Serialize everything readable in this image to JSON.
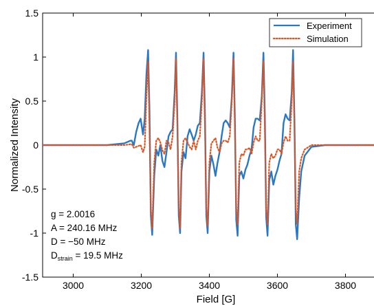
{
  "chart_data": {
    "type": "line",
    "title": "",
    "xlabel": "Field [G]",
    "ylabel": "Normalized Intensity",
    "xlim": [
      2910,
      3900
    ],
    "ylim": [
      -1.5,
      1.5
    ],
    "x_ticks": [
      3000,
      3200,
      3400,
      3600,
      3800
    ],
    "x_tick_labels": [
      "3000",
      "3200",
      "3400",
      "3600",
      "3800"
    ],
    "y_ticks": [
      -1.5,
      -1,
      -0.5,
      0,
      0.5,
      1,
      1.5
    ],
    "y_tick_labels": [
      "-1.5",
      "-1",
      "-0.5",
      "0",
      "0.5",
      "1",
      "1.5"
    ],
    "grid": false,
    "legend_position": "top-right",
    "series": [
      {
        "name": "Experiment",
        "color": "#2a78c2",
        "style": "solid",
        "x": [
          2910,
          3000,
          3100,
          3150,
          3168,
          3172,
          3178,
          3185,
          3192,
          3198,
          3205,
          3210,
          3215,
          3220,
          3224,
          3228,
          3232,
          3238,
          3244,
          3250,
          3256,
          3262,
          3268,
          3274,
          3280,
          3286,
          3292,
          3298,
          3302,
          3306,
          3310,
          3314,
          3318,
          3324,
          3330,
          3336,
          3342,
          3348,
          3354,
          3360,
          3366,
          3372,
          3378,
          3383,
          3387,
          3391,
          3395,
          3400,
          3406,
          3412,
          3418,
          3424,
          3430,
          3436,
          3442,
          3448,
          3454,
          3460,
          3466,
          3471,
          3475,
          3479,
          3483,
          3488,
          3494,
          3500,
          3506,
          3512,
          3518,
          3524,
          3530,
          3536,
          3542,
          3548,
          3554,
          3559,
          3563,
          3567,
          3571,
          3576,
          3582,
          3588,
          3594,
          3600,
          3606,
          3612,
          3618,
          3624,
          3630,
          3636,
          3642,
          3646,
          3650,
          3654,
          3658,
          3664,
          3670,
          3680,
          3700,
          3740,
          3800,
          3900
        ],
        "y": [
          0.0,
          0.0,
          0.0,
          0.02,
          0.05,
          0.05,
          0.0,
          0.15,
          0.25,
          0.3,
          0.12,
          0.3,
          0.8,
          1.08,
          0.4,
          -0.8,
          -1.02,
          -0.35,
          -0.05,
          -0.12,
          0.0,
          -0.18,
          -0.25,
          -0.08,
          0.1,
          0.15,
          0.18,
          0.6,
          1.05,
          0.3,
          -0.8,
          -1.0,
          -0.3,
          -0.08,
          -0.15,
          0.1,
          0.18,
          0.12,
          0.05,
          0.12,
          0.22,
          0.25,
          0.6,
          1.05,
          0.35,
          -0.8,
          -1.0,
          -0.3,
          -0.12,
          -0.22,
          -0.35,
          -0.2,
          -0.08,
          0.1,
          0.25,
          0.28,
          0.25,
          0.2,
          0.55,
          1.05,
          0.3,
          -0.85,
          -1.03,
          -0.35,
          -0.3,
          -0.38,
          -0.28,
          -0.22,
          -0.12,
          -0.05,
          0.2,
          0.3,
          0.3,
          0.28,
          0.55,
          1.05,
          0.35,
          -0.82,
          -1.03,
          -0.4,
          -0.3,
          -0.45,
          -0.35,
          -0.28,
          -0.18,
          -0.1,
          0.25,
          0.35,
          0.3,
          0.28,
          0.6,
          1.08,
          0.3,
          -0.9,
          -1.07,
          -0.6,
          -0.3,
          -0.12,
          -0.02,
          0.0,
          0.0,
          0.0
        ]
      },
      {
        "name": "Simulation",
        "color": "#e0531f",
        "style": "dotted",
        "x": [
          2910,
          3000,
          3100,
          3150,
          3168,
          3172,
          3178,
          3185,
          3192,
          3198,
          3205,
          3210,
          3215,
          3220,
          3224,
          3228,
          3232,
          3238,
          3244,
          3250,
          3256,
          3262,
          3268,
          3274,
          3280,
          3286,
          3292,
          3298,
          3302,
          3306,
          3310,
          3314,
          3318,
          3324,
          3330,
          3336,
          3342,
          3348,
          3354,
          3360,
          3366,
          3372,
          3378,
          3383,
          3387,
          3391,
          3395,
          3400,
          3406,
          3412,
          3418,
          3424,
          3430,
          3436,
          3442,
          3448,
          3454,
          3460,
          3466,
          3471,
          3475,
          3479,
          3483,
          3488,
          3494,
          3500,
          3506,
          3512,
          3518,
          3524,
          3530,
          3536,
          3542,
          3548,
          3554,
          3559,
          3563,
          3567,
          3571,
          3576,
          3582,
          3588,
          3594,
          3600,
          3606,
          3612,
          3618,
          3624,
          3630,
          3636,
          3642,
          3646,
          3650,
          3654,
          3658,
          3664,
          3670,
          3680,
          3700,
          3740,
          3800,
          3900
        ],
        "y": [
          0.0,
          0.0,
          0.0,
          0.0,
          0.01,
          0.01,
          -0.03,
          -0.02,
          -0.01,
          0.0,
          -0.08,
          -0.02,
          0.55,
          0.95,
          0.2,
          -0.72,
          -0.95,
          -0.2,
          0.05,
          0.08,
          0.03,
          -0.06,
          -0.1,
          0.05,
          0.03,
          -0.05,
          0.1,
          0.5,
          0.98,
          0.2,
          -0.7,
          -0.95,
          -0.2,
          0.05,
          0.08,
          0.03,
          -0.02,
          -0.05,
          0.05,
          -0.05,
          0.05,
          0.1,
          0.5,
          0.98,
          0.2,
          -0.72,
          -0.92,
          -0.2,
          0.02,
          0.05,
          0.08,
          -0.03,
          -0.08,
          0.02,
          0.05,
          0.05,
          0.03,
          0.1,
          0.5,
          0.98,
          0.2,
          -0.72,
          -0.9,
          -0.2,
          -0.1,
          -0.12,
          -0.05,
          -0.05,
          -0.03,
          -0.1,
          0.03,
          0.1,
          0.05,
          0.05,
          0.5,
          0.95,
          0.2,
          -0.72,
          -0.9,
          -0.2,
          -0.1,
          -0.15,
          -0.12,
          -0.05,
          -0.05,
          -0.1,
          0.03,
          0.1,
          0.05,
          0.05,
          0.5,
          0.95,
          0.2,
          -0.72,
          -0.9,
          -0.3,
          -0.15,
          -0.05,
          0.0,
          0.0,
          0.0,
          0.0
        ]
      }
    ]
  },
  "legend": {
    "entries": [
      {
        "label": "Experiment",
        "color": "#2a78c2",
        "style": "solid"
      },
      {
        "label": "Simulation",
        "color": "#e0531f",
        "style": "dotted"
      }
    ]
  },
  "parameters": {
    "g": "g = 2.0016",
    "A": "A = 240.16 MHz",
    "D": "D = −50 MHz",
    "D_strain_base": "D",
    "D_strain_sub": "strain",
    "D_strain_value": " = 19.5 MHz"
  }
}
